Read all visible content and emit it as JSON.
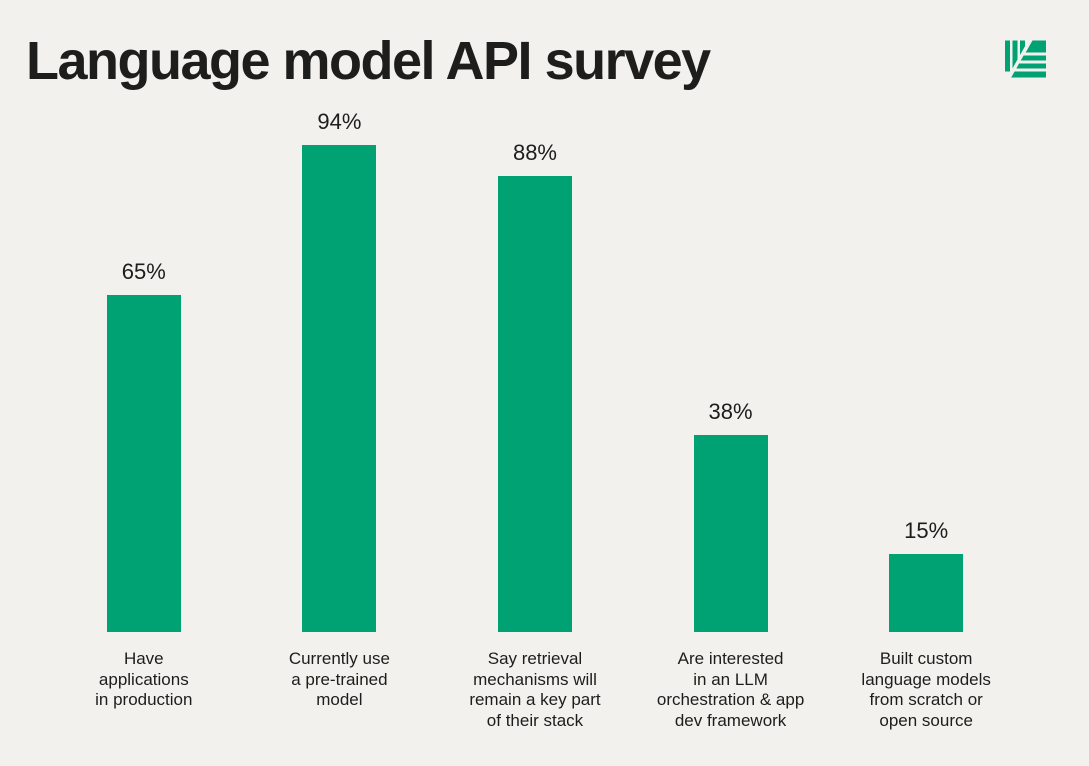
{
  "header": {
    "title": "Language model API survey"
  },
  "logo": {
    "icon": "striped-leaf-logo",
    "color": "#00a173"
  },
  "colors": {
    "background": "#f2f1ee",
    "bar": "#00a173",
    "text": "#1d1d1b"
  },
  "chart_data": {
    "type": "bar",
    "title": "Language model API survey",
    "unit": "%",
    "ylim": [
      0,
      100
    ],
    "grid": false,
    "legend": false,
    "xlabel": "",
    "ylabel": "",
    "categories": [
      "Have applications in production",
      "Currently use a pre-trained model",
      "Say retrieval mechanisms will remain a key part of their stack",
      "Are interested in an LLM orchestration & app dev framework",
      "Built custom language models from scratch or open source"
    ],
    "values": [
      65,
      94,
      88,
      38,
      15
    ],
    "bars": [
      {
        "value": 65,
        "value_label": "65%",
        "label": "Have\napplications\nin production"
      },
      {
        "value": 94,
        "value_label": "94%",
        "label": "Currently use\na pre-trained\nmodel"
      },
      {
        "value": 88,
        "value_label": "88%",
        "label": "Say retrieval\nmechanisms will\nremain a key part\nof their stack"
      },
      {
        "value": 38,
        "value_label": "38%",
        "label": "Are interested\nin an LLM\norchestration & app\ndev framework"
      },
      {
        "value": 15,
        "value_label": "15%",
        "label": "Built custom\nlanguage models\nfrom scratch or\nopen source"
      }
    ]
  }
}
